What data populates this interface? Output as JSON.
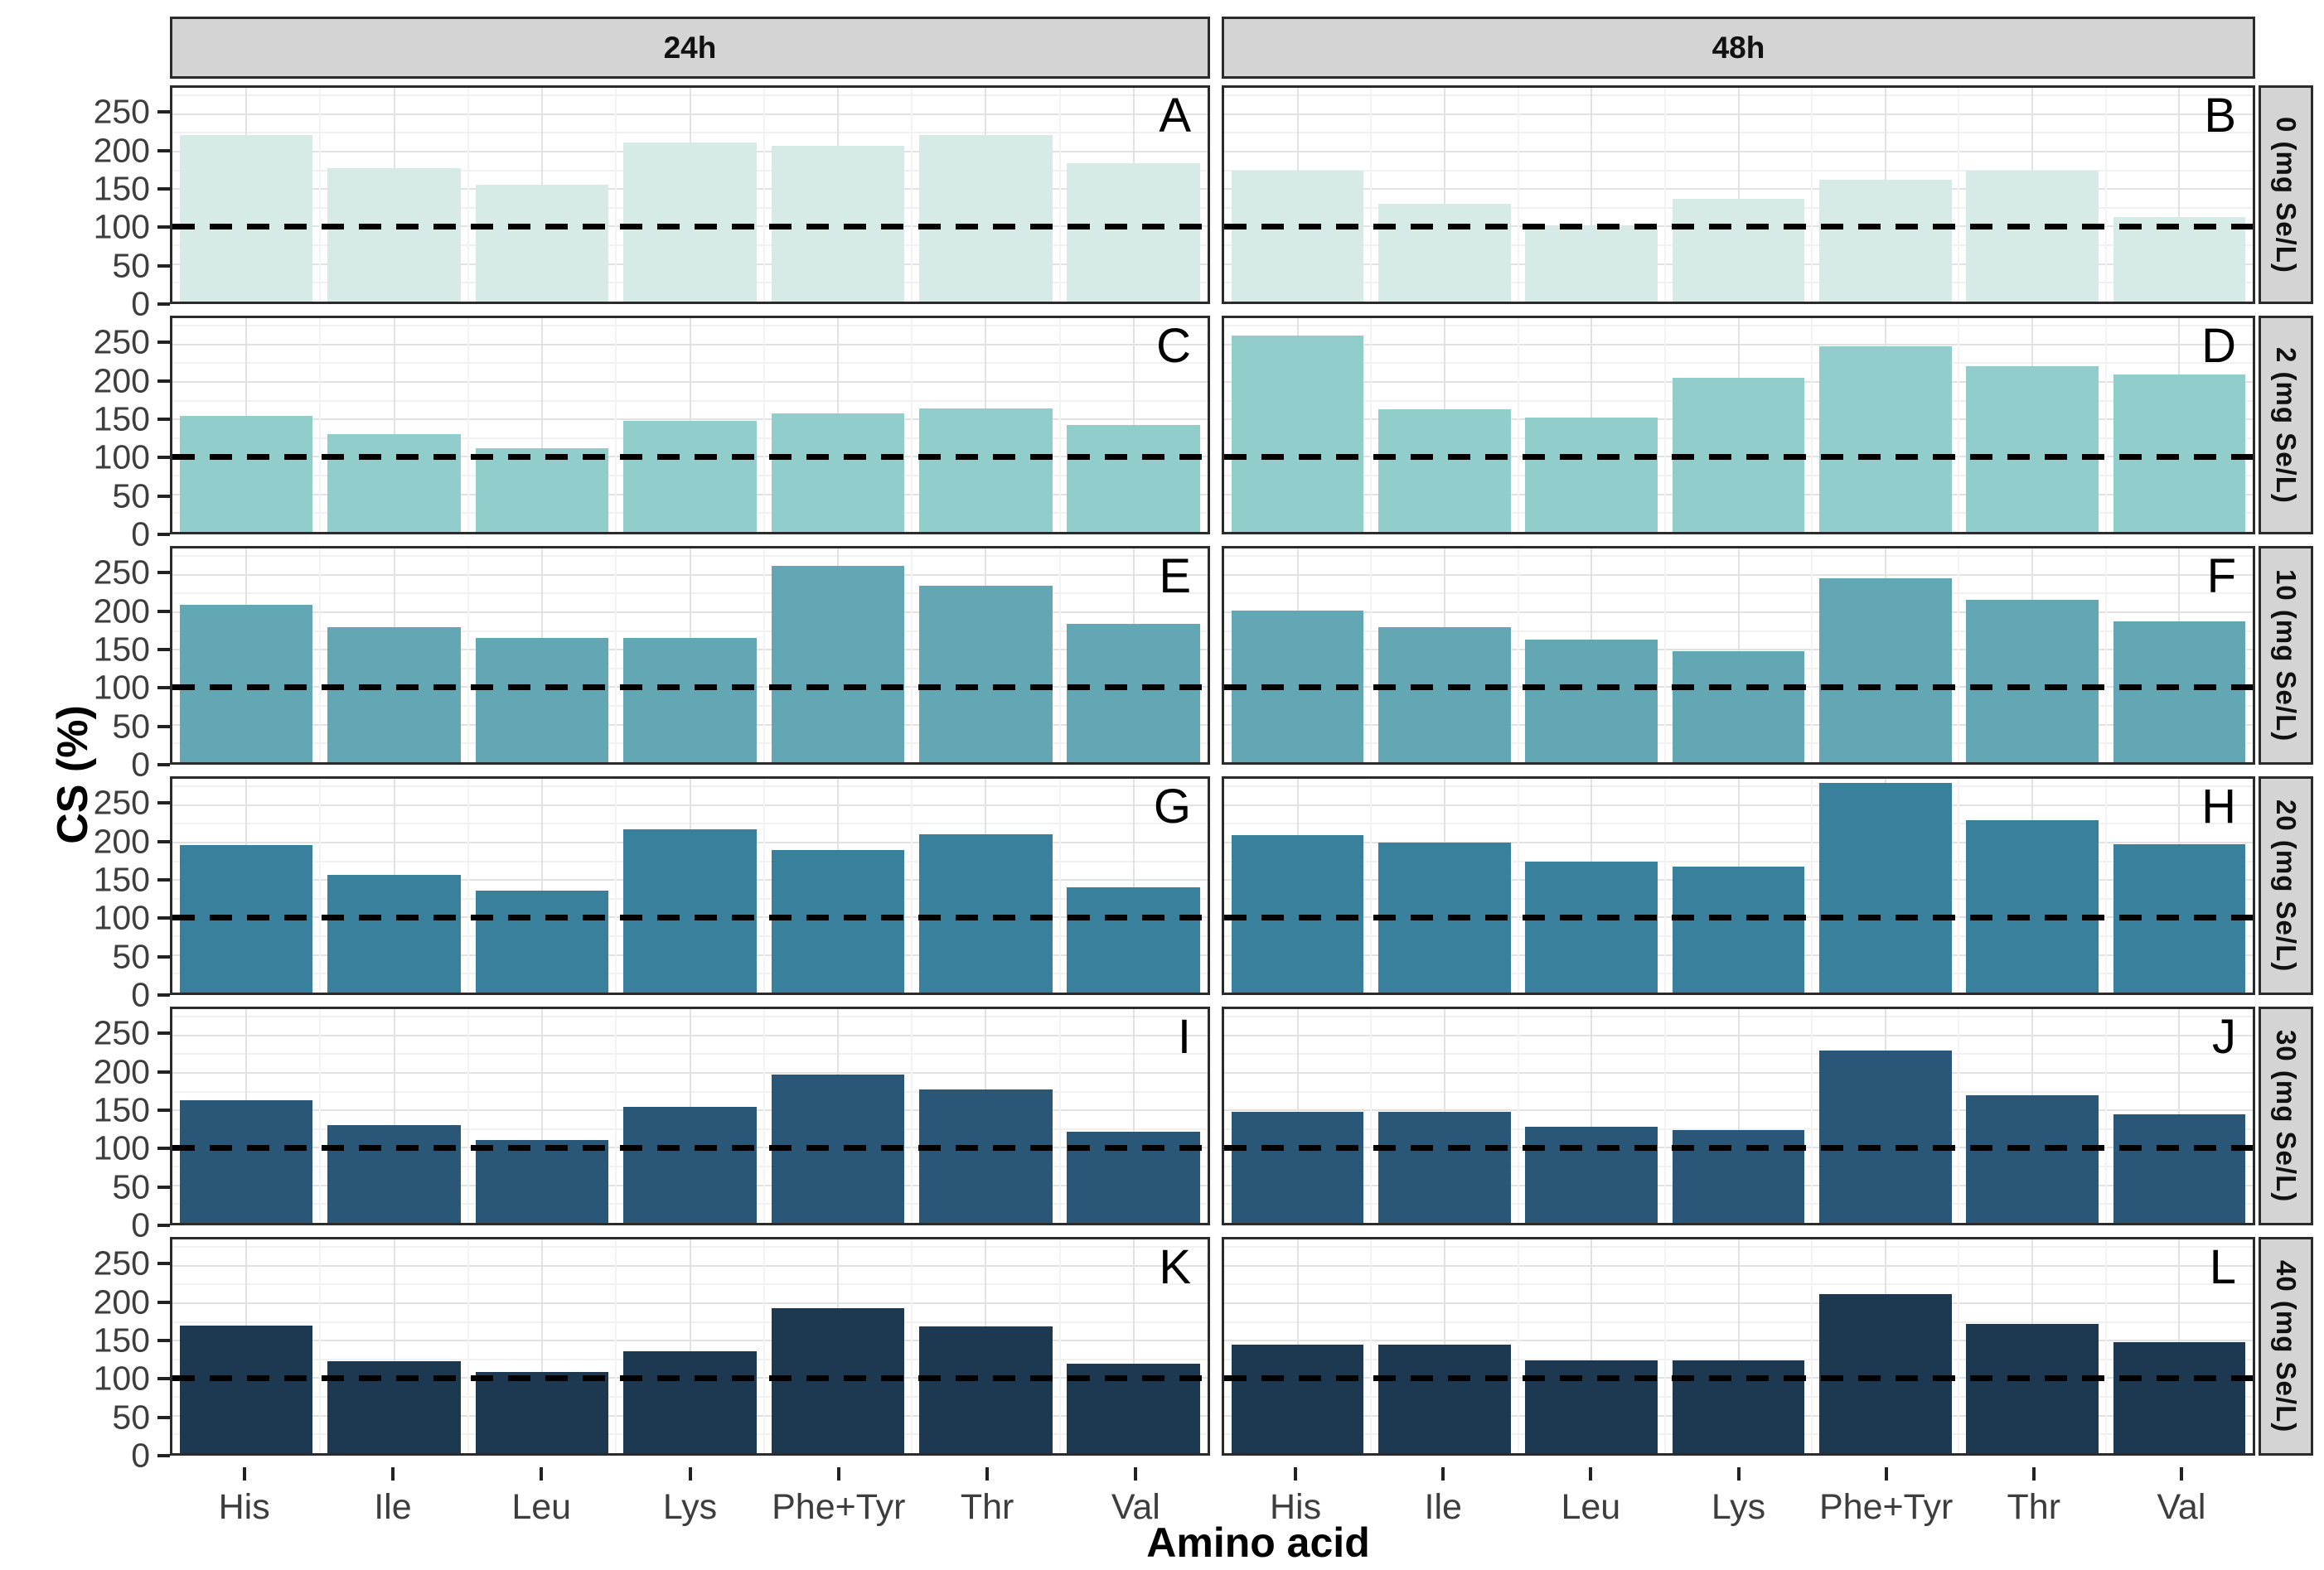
{
  "figure": {
    "y_axis_title": "CS (%)",
    "x_axis_title": "Amino acid",
    "col_facets": [
      "24h",
      "48h"
    ],
    "row_facets": [
      "0 (mg Se/L)",
      "2 (mg Se/L)",
      "10 (mg Se/L)",
      "20 (mg Se/L)",
      "30 (mg Se/L)",
      "40 (mg Se/L)"
    ],
    "row_colors": [
      "#d6ebe7",
      "#90cdcb",
      "#63a7b4",
      "#38809b",
      "#2a5678",
      "#1c3951"
    ],
    "strip_background": "#d4d4d4",
    "panel_border_color": "#2b2b2b",
    "reference_line_color": "#000000"
  },
  "chart_data": {
    "type": "bar",
    "title": "",
    "xlabel": "Amino acid",
    "ylabel": "CS (%)",
    "categories": [
      "His",
      "Ile",
      "Leu",
      "Lys",
      "Phe+Tyr",
      "Thr",
      "Val"
    ],
    "y_ticks": [
      0,
      50,
      100,
      150,
      200,
      250
    ],
    "ylim": [
      0,
      285
    ],
    "reference_line_y": 100,
    "grid": true,
    "facet_columns": [
      "24h",
      "48h"
    ],
    "facet_rows": [
      "0 (mg Se/L)",
      "2 (mg Se/L)",
      "10 (mg Se/L)",
      "20 (mg Se/L)",
      "30 (mg Se/L)",
      "40 (mg Se/L)"
    ],
    "panels": [
      {
        "letter": "A",
        "col": "24h",
        "row": "0 (mg Se/L)",
        "values": [
          222,
          178,
          156,
          212,
          208,
          222,
          185
        ]
      },
      {
        "letter": "B",
        "col": "48h",
        "row": "0 (mg Se/L)",
        "values": [
          175,
          130,
          100,
          137,
          162,
          175,
          113
        ]
      },
      {
        "letter": "C",
        "col": "24h",
        "row": "2 (mg Se/L)",
        "values": [
          155,
          130,
          112,
          148,
          158,
          165,
          143
        ]
      },
      {
        "letter": "D",
        "col": "48h",
        "row": "2 (mg Se/L)",
        "values": [
          262,
          163,
          152,
          205,
          248,
          221,
          210
        ]
      },
      {
        "letter": "E",
        "col": "24h",
        "row": "10 (mg Se/L)",
        "values": [
          210,
          180,
          166,
          166,
          262,
          235,
          185
        ]
      },
      {
        "letter": "F",
        "col": "48h",
        "row": "10 (mg Se/L)",
        "values": [
          202,
          180,
          163,
          148,
          245,
          216,
          188
        ]
      },
      {
        "letter": "G",
        "col": "24h",
        "row": "20 (mg Se/L)",
        "values": [
          197,
          157,
          136,
          218,
          190,
          211,
          140
        ]
      },
      {
        "letter": "H",
        "col": "48h",
        "row": "20 (mg Se/L)",
        "values": [
          210,
          200,
          175,
          168,
          280,
          230,
          198
        ]
      },
      {
        "letter": "I",
        "col": "24h",
        "row": "30 (mg Se/L)",
        "values": [
          163,
          130,
          111,
          155,
          198,
          178,
          121
        ]
      },
      {
        "letter": "J",
        "col": "48h",
        "row": "30 (mg Se/L)",
        "values": [
          148,
          148,
          128,
          124,
          230,
          170,
          145
        ]
      },
      {
        "letter": "K",
        "col": "24h",
        "row": "40 (mg Se/L)",
        "values": [
          170,
          123,
          108,
          136,
          193,
          169,
          119
        ]
      },
      {
        "letter": "L",
        "col": "48h",
        "row": "40 (mg Se/L)",
        "values": [
          145,
          145,
          124,
          124,
          212,
          172,
          148
        ]
      }
    ]
  }
}
